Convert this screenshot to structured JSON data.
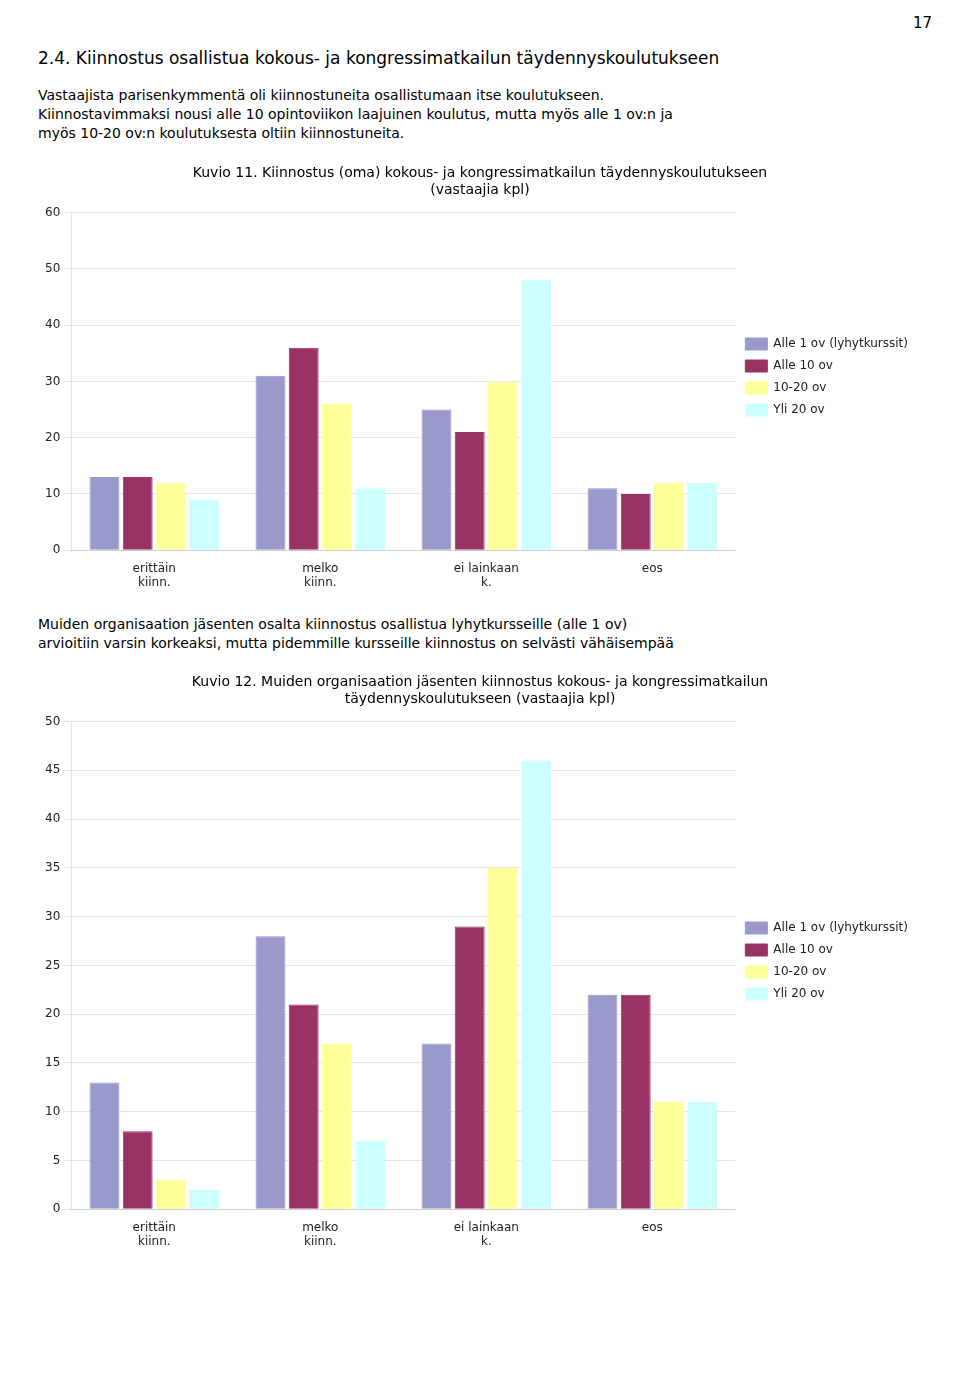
{
  "page_number": "17",
  "header": "2.4. Kiinnostus osallistua kokous- ja kongressimatkailun täydennyskoulutukseen",
  "paragraphs": [
    "Vastaajista parisenkymmentä oli kiinnostuneita osallistumaan itse koulutukseen.\nKiinnostavimmaksi nousi alle 10 opintoviikon laajuinen koulutus, mutta myös alle 1 ov:n ja\nmyös 10-20 ov:n koulutuksesta oltiin kiinnostuneita.",
    "Muiden organisaation jäsenten osalta kiinnostus osallistua lyhytkursseille (alle 1 ov)\narvioitiin varsin korkeaksi, mutta pidemmille kursseille kiinnostus on selvästi vähäisempää"
  ],
  "chart_data": [
    {
      "type": "bar",
      "title": [
        "Kuvio 11. Kiinnostus (oma) kokous- ja kongressimatkailun täydennyskoulutukseen",
        "(vastaajia kpl)"
      ],
      "categories": [
        "erittäin\nkiinn.",
        "melko\nkiinn.",
        "ei lainkaan\nk.",
        "eos"
      ],
      "series": [
        {
          "name": "Alle 1 ov (lyhytkurssit)",
          "color": "#9999cc",
          "values": [
            13,
            31,
            25,
            11
          ]
        },
        {
          "name": "Alle 10 ov",
          "color": "#993366",
          "values": [
            13,
            36,
            21,
            10
          ]
        },
        {
          "name": "10-20 ov",
          "color": "#ffff99",
          "values": [
            12,
            26,
            30,
            12
          ]
        },
        {
          "name": "Yli 20 ov",
          "color": "#ccffff",
          "values": [
            9,
            11,
            48,
            12
          ]
        }
      ],
      "ylim": [
        0,
        60
      ],
      "yticks": [
        0,
        10,
        20,
        30,
        40,
        50,
        60
      ],
      "grid": true,
      "legend": "right"
    },
    {
      "type": "bar",
      "title": [
        "Kuvio 12. Muiden organisaation jäsenten kiinnostus kokous- ja kongressimatkailun",
        "täydennyskoulutukseen (vastaajia kpl)"
      ],
      "categories": [
        "erittäin\nkiinn.",
        "melko\nkiinn.",
        "ei lainkaan\nk.",
        "eos"
      ],
      "series": [
        {
          "name": "Alle 1 ov (lyhytkurssit)",
          "color": "#9999cc",
          "values": [
            13,
            28,
            17,
            22
          ]
        },
        {
          "name": "Alle 10 ov",
          "color": "#993366",
          "values": [
            8,
            21,
            29,
            22
          ]
        },
        {
          "name": "10-20 ov",
          "color": "#ffff99",
          "values": [
            3,
            17,
            35,
            11
          ]
        },
        {
          "name": "Yli 20 ov",
          "color": "#ccffff",
          "values": [
            2,
            7,
            46,
            11
          ]
        }
      ],
      "ylim": [
        0,
        50
      ],
      "yticks": [
        0,
        5,
        10,
        15,
        20,
        25,
        30,
        35,
        40,
        45,
        50
      ],
      "grid": true,
      "legend": "right"
    }
  ]
}
